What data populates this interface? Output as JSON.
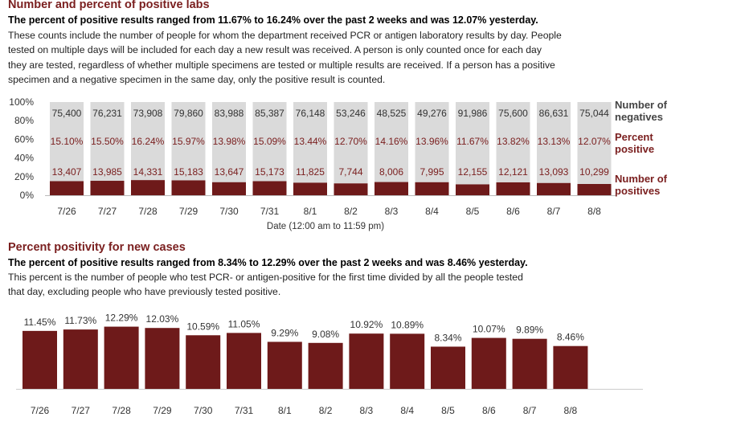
{
  "section1": {
    "title": "Number and percent of positive labs",
    "subtitle": "The percent of positive results ranged from 11.67% to 16.24% over the past 2 weeks and was 12.07% yesterday.",
    "body_lines": [
      "These counts include the number of people for whom the department received PCR or antigen laboratory results by day. People",
      "tested on multiple days will be included for each day a new result was received. A person is only counted once for each day",
      "they are tested, regardless of whether multiple specimens are tested or multiple results are received. If a person has a positive",
      "specimen and a negative specimen in the same day, only the positive result is counted."
    ]
  },
  "section2": {
    "title": "Percent positivity for new cases",
    "subtitle": "The percent of positive results ranged from 8.34% to 12.29% over the past 2 weeks and was 8.46% yesterday.",
    "body_lines": [
      "This percent is the number of people who test PCR- or antigen-positive for the first time divided by all the people tested",
      "that day, excluding people who have previously tested positive."
    ]
  },
  "colors": {
    "positive": "#6e1a1a",
    "negative": "#dadada",
    "title": "#7b2020",
    "label": "#333333"
  },
  "chart_data": [
    {
      "type": "bar",
      "stacked": "percent",
      "categories": [
        "7/26",
        "7/27",
        "7/28",
        "7/29",
        "7/30",
        "7/31",
        "8/1",
        "8/2",
        "8/3",
        "8/4",
        "8/5",
        "8/6",
        "8/7",
        "8/8"
      ],
      "xlabel": "Date (12:00 am to 11:59 pm)",
      "ylim": [
        0,
        100
      ],
      "yticks": [
        "0%",
        "20%",
        "40%",
        "60%",
        "80%",
        "100%"
      ],
      "series": [
        {
          "name": "Number of positives",
          "legend_lines": [
            "Number of",
            "positives"
          ],
          "values": [
            13407,
            13985,
            14331,
            15183,
            13647,
            15173,
            11825,
            7744,
            8006,
            7995,
            12155,
            12121,
            13093,
            10299
          ],
          "labels": [
            "13,407",
            "13,985",
            "14,331",
            "15,183",
            "13,647",
            "15,173",
            "11,825",
            "7,744",
            "8,006",
            "7,995",
            "12,155",
            "12,121",
            "13,093",
            "10,299"
          ]
        },
        {
          "name": "Number of negatives",
          "legend_lines": [
            "Number of",
            "negatives"
          ],
          "values": [
            75400,
            76231,
            73908,
            79860,
            83988,
            85387,
            76148,
            53246,
            48525,
            49276,
            91986,
            75600,
            86631,
            75044
          ],
          "labels": [
            "75,400",
            "76,231",
            "73,908",
            "79,860",
            "83,988",
            "85,387",
            "76,148",
            "53,246",
            "48,525",
            "49,276",
            "91,986",
            "75,600",
            "86,631",
            "75,044"
          ]
        },
        {
          "name": "Percent positive",
          "legend_lines": [
            "Percent",
            "positive"
          ],
          "values": [
            15.1,
            15.5,
            16.24,
            15.97,
            13.98,
            15.09,
            13.44,
            12.7,
            14.16,
            13.96,
            11.67,
            13.82,
            13.13,
            12.07
          ],
          "labels": [
            "15.10%",
            "15.50%",
            "16.24%",
            "15.97%",
            "13.98%",
            "15.09%",
            "13.44%",
            "12.70%",
            "14.16%",
            "13.96%",
            "11.67%",
            "13.82%",
            "13.13%",
            "12.07%"
          ]
        }
      ]
    },
    {
      "type": "bar",
      "categories": [
        "7/26",
        "7/27",
        "7/28",
        "7/29",
        "7/30",
        "7/31",
        "8/1",
        "8/2",
        "8/3",
        "8/4",
        "8/5",
        "8/6",
        "8/7",
        "8/8"
      ],
      "series": [
        {
          "values": [
            11.45,
            11.73,
            12.29,
            12.03,
            10.59,
            11.05,
            9.29,
            9.08,
            10.92,
            10.89,
            8.34,
            10.07,
            9.89,
            8.46
          ],
          "labels": [
            "11.45%",
            "11.73%",
            "12.29%",
            "12.03%",
            "10.59%",
            "11.05%",
            "9.29%",
            "9.08%",
            "10.92%",
            "10.89%",
            "8.34%",
            "10.07%",
            "9.89%",
            "8.46%"
          ]
        }
      ]
    }
  ]
}
